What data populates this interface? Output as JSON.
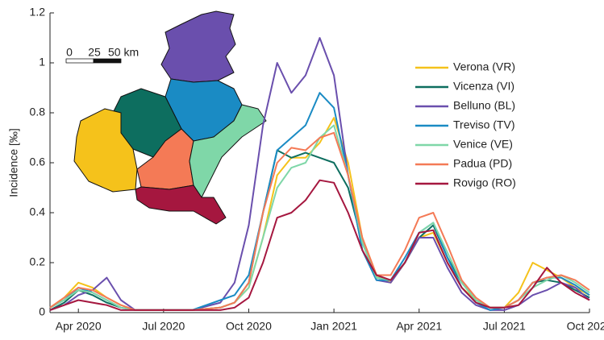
{
  "chart_data": {
    "type": "line",
    "ylabel": "Incidence [‰]",
    "annotations": [
      "0",
      "25",
      "50 km"
    ],
    "x": [
      2,
      2.5,
      3,
      3.5,
      4,
      4.5,
      5,
      6,
      7,
      8,
      8.5,
      9,
      9.5,
      10,
      10.5,
      11,
      11.5,
      12,
      12.5,
      13,
      13.5,
      14,
      14.5,
      15,
      15.5,
      16,
      16.5,
      17,
      17.5,
      18,
      18.5,
      19,
      19.5,
      20,
      20.5,
      21
    ],
    "xlim": [
      2,
      21
    ],
    "xticks": [
      {
        "value": 3,
        "label": "Apr 2020"
      },
      {
        "value": 6,
        "label": "Jul 2020"
      },
      {
        "value": 9,
        "label": "Oct 2020"
      },
      {
        "value": 12,
        "label": "Jan 2021"
      },
      {
        "value": 15,
        "label": "Apr 2021"
      },
      {
        "value": 18,
        "label": "Jul 2021"
      },
      {
        "value": 21,
        "label": "Oct 2021"
      }
    ],
    "ylim": [
      0,
      1.2
    ],
    "yticks": [
      0,
      0.2,
      0.4,
      0.6,
      0.8,
      1,
      1.2
    ],
    "legend": "upper right",
    "series": [
      {
        "name": "Verona (VR)",
        "color": "#f5c21b",
        "values": [
          0.02,
          0.06,
          0.12,
          0.1,
          0.06,
          0.03,
          0.01,
          0.01,
          0.01,
          0.02,
          0.04,
          0.1,
          0.3,
          0.55,
          0.62,
          0.62,
          0.68,
          0.78,
          0.6,
          0.3,
          0.15,
          0.12,
          0.2,
          0.3,
          0.32,
          0.2,
          0.1,
          0.05,
          0.02,
          0.02,
          0.08,
          0.2,
          0.17,
          0.14,
          0.1,
          0.07
        ]
      },
      {
        "name": "Vicenza (VI)",
        "color": "#0d6e5f",
        "values": [
          0.01,
          0.04,
          0.09,
          0.07,
          0.04,
          0.02,
          0.01,
          0.01,
          0.01,
          0.02,
          0.04,
          0.12,
          0.4,
          0.65,
          0.62,
          0.64,
          0.62,
          0.6,
          0.5,
          0.28,
          0.14,
          0.13,
          0.2,
          0.3,
          0.35,
          0.22,
          0.12,
          0.05,
          0.02,
          0.02,
          0.05,
          0.12,
          0.13,
          0.12,
          0.09,
          0.06
        ]
      },
      {
        "name": "Belluno (BL)",
        "color": "#6a4fad",
        "values": [
          0.01,
          0.03,
          0.07,
          0.09,
          0.14,
          0.05,
          0.01,
          0.01,
          0.01,
          0.04,
          0.12,
          0.35,
          0.75,
          1.0,
          0.88,
          0.95,
          1.1,
          0.95,
          0.55,
          0.25,
          0.13,
          0.12,
          0.2,
          0.3,
          0.3,
          0.18,
          0.08,
          0.03,
          0.01,
          0.01,
          0.03,
          0.07,
          0.09,
          0.12,
          0.1,
          0.05
        ]
      },
      {
        "name": "Treviso (TV)",
        "color": "#1a8bc4",
        "values": [
          0.02,
          0.05,
          0.1,
          0.08,
          0.05,
          0.02,
          0.01,
          0.01,
          0.01,
          0.05,
          0.07,
          0.15,
          0.4,
          0.65,
          0.7,
          0.75,
          0.88,
          0.82,
          0.55,
          0.25,
          0.13,
          0.13,
          0.22,
          0.32,
          0.36,
          0.22,
          0.1,
          0.04,
          0.01,
          0.02,
          0.05,
          0.12,
          0.14,
          0.14,
          0.11,
          0.07
        ]
      },
      {
        "name": "Venice (VE)",
        "color": "#7fd7a8",
        "values": [
          0.02,
          0.05,
          0.09,
          0.08,
          0.05,
          0.02,
          0.01,
          0.01,
          0.01,
          0.02,
          0.04,
          0.1,
          0.3,
          0.5,
          0.58,
          0.6,
          0.7,
          0.75,
          0.55,
          0.28,
          0.14,
          0.13,
          0.2,
          0.32,
          0.36,
          0.24,
          0.12,
          0.05,
          0.02,
          0.02,
          0.05,
          0.1,
          0.13,
          0.15,
          0.12,
          0.08
        ]
      },
      {
        "name": "Padua (PD)",
        "color": "#f47a56",
        "values": [
          0.02,
          0.06,
          0.1,
          0.09,
          0.06,
          0.03,
          0.01,
          0.01,
          0.01,
          0.02,
          0.04,
          0.12,
          0.4,
          0.6,
          0.66,
          0.65,
          0.7,
          0.72,
          0.55,
          0.3,
          0.15,
          0.15,
          0.25,
          0.38,
          0.4,
          0.27,
          0.13,
          0.06,
          0.02,
          0.02,
          0.05,
          0.12,
          0.14,
          0.15,
          0.13,
          0.09
        ]
      },
      {
        "name": "Rovigo (RO)",
        "color": "#a5173f",
        "values": [
          0.01,
          0.03,
          0.05,
          0.04,
          0.03,
          0.01,
          0.01,
          0.01,
          0.01,
          0.01,
          0.02,
          0.06,
          0.2,
          0.38,
          0.4,
          0.45,
          0.53,
          0.52,
          0.4,
          0.25,
          0.15,
          0.13,
          0.2,
          0.32,
          0.33,
          0.2,
          0.1,
          0.04,
          0.02,
          0.02,
          0.03,
          0.1,
          0.18,
          0.12,
          0.08,
          0.05
        ]
      }
    ]
  }
}
